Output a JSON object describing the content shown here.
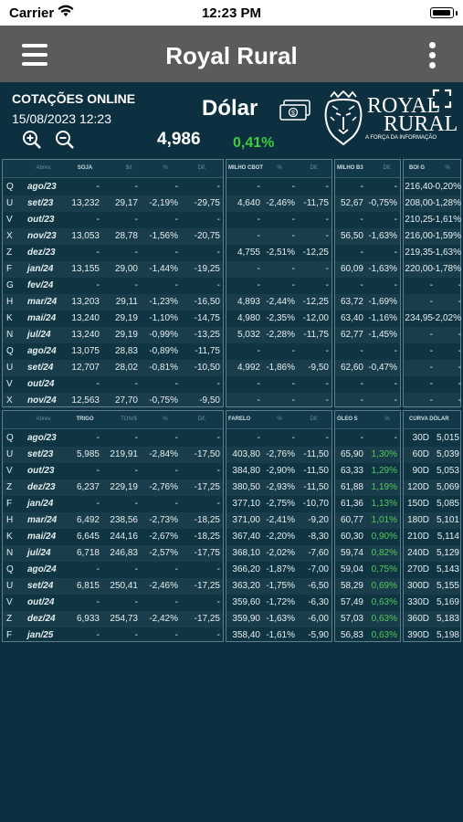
{
  "status_bar": {
    "carrier": "Carrier",
    "time": "12:23 PM"
  },
  "header": {
    "title": "Royal Rural"
  },
  "info": {
    "title": "COTAÇÕES ONLINE",
    "datetime": "15/08/2023 12:23",
    "dolar_label": "Dólar",
    "dolar_value": "4,986",
    "dolar_change": "0,41%",
    "logo_line1": "ROYAL",
    "logo_line2": "RURAL",
    "logo_tagline": "A FORÇA DA INFORMAÇÃO"
  },
  "colors": {
    "background": "#0c3040",
    "header": "#5a5b5d",
    "positive": "#3dcc3d"
  },
  "top": {
    "headers": {
      "soja": [
        "Abrev.",
        "SOJA",
        "$/t",
        "%",
        "Dif."
      ],
      "milho_cbot": [
        "MILHO CBOT",
        "%",
        "Dif."
      ],
      "milho_b3": [
        "MILHO B3",
        "Dif."
      ],
      "boi": [
        "BOI G",
        "%"
      ]
    },
    "rows": [
      {
        "code": "Q",
        "month": "ago/23",
        "soja": [
          "-",
          "-",
          "-",
          "-"
        ],
        "mc": [
          "-",
          "-",
          "-"
        ],
        "mb": [
          "-",
          "-"
        ],
        "boi": [
          "216,40",
          "-0,20%"
        ]
      },
      {
        "code": "U",
        "month": "set/23",
        "soja": [
          "13,232",
          "29,17",
          "-2,19%",
          "-29,75"
        ],
        "mc": [
          "4,640",
          "-2,46%",
          "-11,75"
        ],
        "mb": [
          "52,67",
          "-0,75%"
        ],
        "boi": [
          "208,00",
          "-1,28%"
        ]
      },
      {
        "code": "V",
        "month": "out/23",
        "soja": [
          "-",
          "-",
          "-",
          "-"
        ],
        "mc": [
          "-",
          "-",
          "-"
        ],
        "mb": [
          "-",
          "-"
        ],
        "boi": [
          "210,25",
          "-1,61%"
        ]
      },
      {
        "code": "X",
        "month": "nov/23",
        "soja": [
          "13,053",
          "28,78",
          "-1,56%",
          "-20,75"
        ],
        "mc": [
          "-",
          "-",
          "-"
        ],
        "mb": [
          "56,50",
          "-1,63%"
        ],
        "boi": [
          "216,00",
          "-1,59%"
        ]
      },
      {
        "code": "Z",
        "month": "dez/23",
        "soja": [
          "-",
          "-",
          "-",
          "-"
        ],
        "mc": [
          "4,755",
          "-2,51%",
          "-12,25"
        ],
        "mb": [
          "-",
          "-"
        ],
        "boi": [
          "219,35",
          "-1,63%"
        ]
      },
      {
        "code": "F",
        "month": "jan/24",
        "soja": [
          "13,155",
          "29,00",
          "-1,44%",
          "-19,25"
        ],
        "mc": [
          "-",
          "-",
          "-"
        ],
        "mb": [
          "60,09",
          "-1,63%"
        ],
        "boi": [
          "220,00",
          "-1,78%"
        ]
      },
      {
        "code": "G",
        "month": "fev/24",
        "soja": [
          "-",
          "-",
          "-",
          "-"
        ],
        "mc": [
          "-",
          "-",
          "-"
        ],
        "mb": [
          "-",
          "-"
        ],
        "boi": [
          "-",
          "-"
        ]
      },
      {
        "code": "H",
        "month": "mar/24",
        "soja": [
          "13,203",
          "29,11",
          "-1,23%",
          "-16,50"
        ],
        "mc": [
          "4,893",
          "-2,44%",
          "-12,25"
        ],
        "mb": [
          "63,72",
          "-1,69%"
        ],
        "boi": [
          "-",
          "-"
        ]
      },
      {
        "code": "K",
        "month": "mai/24",
        "soja": [
          "13,240",
          "29,19",
          "-1,10%",
          "-14,75"
        ],
        "mc": [
          "4,980",
          "-2,35%",
          "-12,00"
        ],
        "mb": [
          "63,40",
          "-1,16%"
        ],
        "boi": [
          "234,95",
          "-2,02%"
        ]
      },
      {
        "code": "N",
        "month": "jul/24",
        "soja": [
          "13,240",
          "29,19",
          "-0,99%",
          "-13,25"
        ],
        "mc": [
          "5,032",
          "-2,28%",
          "-11,75"
        ],
        "mb": [
          "62,77",
          "-1,45%"
        ],
        "boi": [
          "-",
          "-"
        ]
      },
      {
        "code": "Q",
        "month": "ago/24",
        "soja": [
          "13,075",
          "28,83",
          "-0,89%",
          "-11,75"
        ],
        "mc": [
          "-",
          "-",
          "-"
        ],
        "mb": [
          "-",
          "-"
        ],
        "boi": [
          "-",
          "-"
        ]
      },
      {
        "code": "U",
        "month": "set/24",
        "soja": [
          "12,707",
          "28,02",
          "-0,81%",
          "-10,50"
        ],
        "mc": [
          "4,992",
          "-1,86%",
          "-9,50"
        ],
        "mb": [
          "62,60",
          "-0,47%"
        ],
        "boi": [
          "-",
          "-"
        ]
      },
      {
        "code": "V",
        "month": "out/24",
        "soja": [
          "-",
          "-",
          "-",
          "-"
        ],
        "mc": [
          "-",
          "-",
          "-"
        ],
        "mb": [
          "-",
          "-"
        ],
        "boi": [
          "-",
          "-"
        ]
      },
      {
        "code": "X",
        "month": "nov/24",
        "soja": [
          "12,563",
          "27,70",
          "-0,75%",
          "-9,50"
        ],
        "mc": [
          "-",
          "-",
          "-"
        ],
        "mb": [
          "-",
          "-"
        ],
        "boi": [
          "-",
          "-"
        ]
      }
    ]
  },
  "bottom": {
    "headers": {
      "trigo": [
        "Abrev.",
        "TRIGO",
        "TON/$",
        "%",
        "Dif."
      ],
      "farelo": [
        "FARELO",
        "%",
        "Dif."
      ],
      "oleo": [
        "ÓLEO S",
        "%"
      ],
      "curva": [
        "CURVA DÓLAR"
      ]
    },
    "rows": [
      {
        "code": "Q",
        "month": "ago/23",
        "trigo": [
          "-",
          "-",
          "-",
          "-"
        ],
        "far": [
          "-",
          "-",
          "-"
        ],
        "oleo": [
          "-",
          "-"
        ],
        "curva": [
          "30D",
          "5,015"
        ]
      },
      {
        "code": "U",
        "month": "set/23",
        "trigo": [
          "5,985",
          "219,91",
          "-2,84%",
          "-17,50"
        ],
        "far": [
          "403,80",
          "-2,76%",
          "-11,50"
        ],
        "oleo": [
          "65,90",
          "1,30%"
        ],
        "curva": [
          "60D",
          "5,039"
        ]
      },
      {
        "code": "V",
        "month": "out/23",
        "trigo": [
          "-",
          "-",
          "-",
          "-"
        ],
        "far": [
          "384,80",
          "-2,90%",
          "-11,50"
        ],
        "oleo": [
          "63,33",
          "1,29%"
        ],
        "curva": [
          "90D",
          "5,053"
        ]
      },
      {
        "code": "Z",
        "month": "dez/23",
        "trigo": [
          "6,237",
          "229,19",
          "-2,76%",
          "-17,25"
        ],
        "far": [
          "380,50",
          "-2,93%",
          "-11,50"
        ],
        "oleo": [
          "61,88",
          "1,19%"
        ],
        "curva": [
          "120D",
          "5,069"
        ]
      },
      {
        "code": "F",
        "month": "jan/24",
        "trigo": [
          "-",
          "-",
          "-",
          "-"
        ],
        "far": [
          "377,10",
          "-2,75%",
          "-10,70"
        ],
        "oleo": [
          "61,36",
          "1,13%"
        ],
        "curva": [
          "150D",
          "5,085"
        ]
      },
      {
        "code": "H",
        "month": "mar/24",
        "trigo": [
          "6,492",
          "238,56",
          "-2,73%",
          "-18,25"
        ],
        "far": [
          "371,00",
          "-2,41%",
          "-9,20"
        ],
        "oleo": [
          "60,77",
          "1,01%"
        ],
        "curva": [
          "180D",
          "5,101"
        ]
      },
      {
        "code": "K",
        "month": "mai/24",
        "trigo": [
          "6,645",
          "244,16",
          "-2,67%",
          "-18,25"
        ],
        "far": [
          "367,40",
          "-2,20%",
          "-8,30"
        ],
        "oleo": [
          "60,30",
          "0,90%"
        ],
        "curva": [
          "210D",
          "5,114"
        ]
      },
      {
        "code": "N",
        "month": "jul/24",
        "trigo": [
          "6,718",
          "246,83",
          "-2,57%",
          "-17,75"
        ],
        "far": [
          "368,10",
          "-2,02%",
          "-7,60"
        ],
        "oleo": [
          "59,74",
          "0,82%"
        ],
        "curva": [
          "240D",
          "5,129"
        ]
      },
      {
        "code": "Q",
        "month": "ago/24",
        "trigo": [
          "-",
          "-",
          "-",
          "-"
        ],
        "far": [
          "366,20",
          "-1,87%",
          "-7,00"
        ],
        "oleo": [
          "59,04",
          "0,75%"
        ],
        "curva": [
          "270D",
          "5,143"
        ]
      },
      {
        "code": "U",
        "month": "set/24",
        "trigo": [
          "6,815",
          "250,41",
          "-2,46%",
          "-17,25"
        ],
        "far": [
          "363,20",
          "-1,75%",
          "-6,50"
        ],
        "oleo": [
          "58,29",
          "0,69%"
        ],
        "curva": [
          "300D",
          "5,155"
        ]
      },
      {
        "code": "V",
        "month": "out/24",
        "trigo": [
          "-",
          "-",
          "-",
          "-"
        ],
        "far": [
          "359,60",
          "-1,72%",
          "-6,30"
        ],
        "oleo": [
          "57,49",
          "0,63%"
        ],
        "curva": [
          "330D",
          "5,169"
        ]
      },
      {
        "code": "Z",
        "month": "dez/24",
        "trigo": [
          "6,933",
          "254,73",
          "-2,42%",
          "-17,25"
        ],
        "far": [
          "359,90",
          "-1,63%",
          "-6,00"
        ],
        "oleo": [
          "57,03",
          "0,63%"
        ],
        "curva": [
          "360D",
          "5,183"
        ]
      },
      {
        "code": "F",
        "month": "jan/25",
        "trigo": [
          "-",
          "-",
          "-",
          "-"
        ],
        "far": [
          "358,40",
          "-1,61%",
          "-5,90"
        ],
        "oleo": [
          "56,83",
          "0,63%"
        ],
        "curva": [
          "390D",
          "5,198"
        ]
      }
    ]
  }
}
